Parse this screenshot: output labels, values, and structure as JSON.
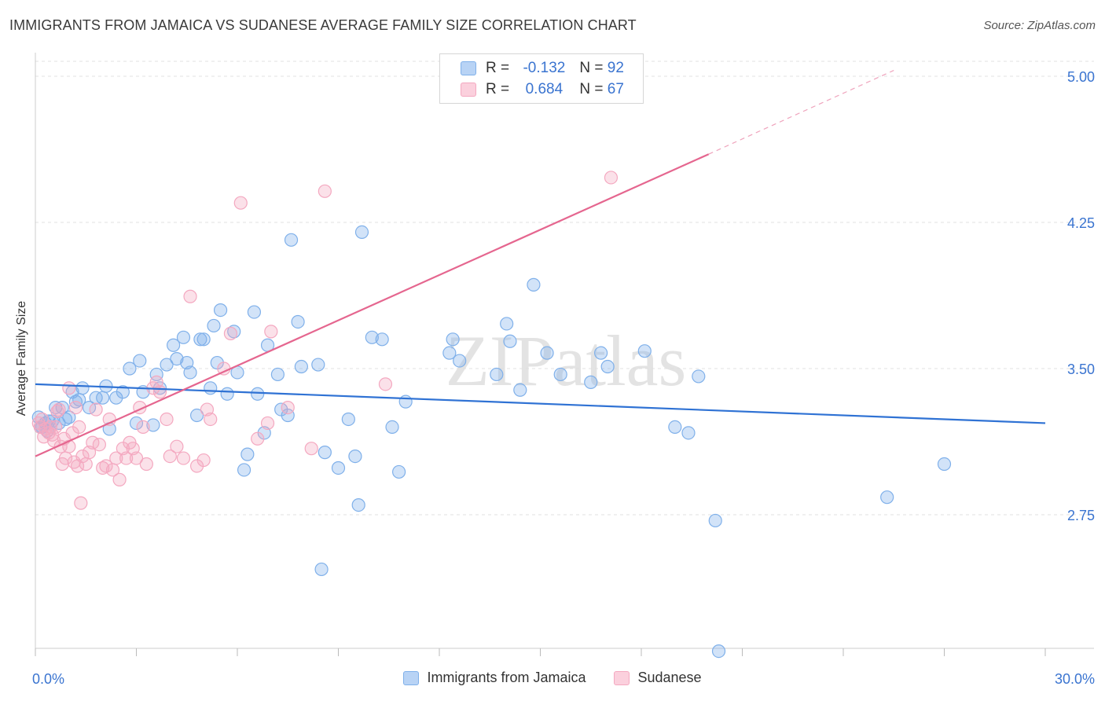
{
  "title": "IMMIGRANTS FROM JAMAICA VS SUDANESE AVERAGE FAMILY SIZE CORRELATION CHART",
  "source": "Source: ZipAtlas.com",
  "watermark": "ZIPatlas",
  "legend": {
    "rows": [
      {
        "r_label": "R =",
        "r_value": "-0.132",
        "n_label": "N =",
        "n_value": "92"
      },
      {
        "r_label": "R =",
        "r_value": "0.684",
        "n_label": "N =",
        "n_value": "67"
      }
    ]
  },
  "chart_data": {
    "type": "scatter",
    "xlabel": "",
    "ylabel": "Average Family Size",
    "xlim": [
      0,
      30
    ],
    "ylim": [
      2.0,
      5.1
    ],
    "x_tick_labels": [
      "0.0%",
      "30.0%"
    ],
    "y_ticks": [
      2.75,
      3.5,
      4.25,
      5.0
    ],
    "y_tick_labels": [
      "2.75",
      "3.50",
      "4.25",
      "5.00"
    ],
    "grid": "horizontal dashed",
    "legend_position": "top-center",
    "series": [
      {
        "name": "Immigrants from Jamaica",
        "color": "#7fb0ea",
        "line_color": "#2f72d4",
        "trend": {
          "x": [
            0,
            30
          ],
          "y": [
            3.42,
            3.22
          ]
        },
        "points": [
          [
            0.1,
            3.25
          ],
          [
            0.2,
            3.2
          ],
          [
            0.3,
            3.22
          ],
          [
            0.4,
            3.23
          ],
          [
            0.6,
            3.3
          ],
          [
            0.7,
            3.22
          ],
          [
            0.8,
            3.3
          ],
          [
            1.0,
            3.25
          ],
          [
            1.2,
            3.33
          ],
          [
            1.4,
            3.4
          ],
          [
            1.6,
            3.3
          ],
          [
            1.8,
            3.35
          ],
          [
            2.0,
            3.35
          ],
          [
            2.1,
            3.41
          ],
          [
            2.2,
            3.19
          ],
          [
            2.4,
            3.35
          ],
          [
            2.6,
            3.38
          ],
          [
            2.8,
            3.5
          ],
          [
            3.0,
            3.22
          ],
          [
            3.1,
            3.54
          ],
          [
            3.2,
            3.38
          ],
          [
            3.5,
            3.21
          ],
          [
            3.6,
            3.47
          ],
          [
            3.7,
            3.4
          ],
          [
            3.9,
            3.52
          ],
          [
            4.1,
            3.62
          ],
          [
            4.2,
            3.55
          ],
          [
            4.4,
            3.66
          ],
          [
            4.5,
            3.53
          ],
          [
            4.6,
            3.48
          ],
          [
            4.8,
            3.26
          ],
          [
            4.9,
            3.65
          ],
          [
            5.0,
            3.65
          ],
          [
            5.2,
            3.4
          ],
          [
            5.3,
            3.72
          ],
          [
            5.4,
            3.53
          ],
          [
            5.5,
            3.8
          ],
          [
            5.7,
            3.37
          ],
          [
            5.9,
            3.69
          ],
          [
            6.0,
            3.48
          ],
          [
            6.2,
            2.98
          ],
          [
            6.3,
            3.06
          ],
          [
            6.5,
            3.79
          ],
          [
            6.6,
            3.37
          ],
          [
            6.8,
            3.17
          ],
          [
            6.9,
            3.62
          ],
          [
            7.2,
            3.47
          ],
          [
            7.3,
            3.29
          ],
          [
            7.5,
            3.26
          ],
          [
            7.6,
            4.16
          ],
          [
            7.8,
            3.74
          ],
          [
            7.9,
            3.51
          ],
          [
            8.4,
            3.52
          ],
          [
            8.5,
            2.47
          ],
          [
            8.6,
            3.07
          ],
          [
            9.0,
            2.99
          ],
          [
            9.3,
            3.24
          ],
          [
            9.5,
            3.05
          ],
          [
            9.6,
            2.8
          ],
          [
            9.7,
            4.2
          ],
          [
            10.0,
            3.66
          ],
          [
            10.3,
            3.65
          ],
          [
            10.6,
            3.2
          ],
          [
            10.8,
            2.97
          ],
          [
            11.0,
            3.33
          ],
          [
            12.3,
            3.58
          ],
          [
            12.6,
            3.54
          ],
          [
            12.4,
            3.65
          ],
          [
            13.7,
            3.47
          ],
          [
            14.0,
            3.73
          ],
          [
            14.1,
            3.64
          ],
          [
            14.4,
            3.39
          ],
          [
            14.8,
            3.93
          ],
          [
            15.2,
            3.58
          ],
          [
            15.6,
            3.47
          ],
          [
            16.5,
            3.43
          ],
          [
            16.8,
            3.58
          ],
          [
            17.0,
            3.51
          ],
          [
            18.1,
            3.59
          ],
          [
            19.0,
            3.2
          ],
          [
            19.4,
            3.17
          ],
          [
            19.7,
            3.46
          ],
          [
            20.2,
            2.72
          ],
          [
            20.3,
            2.05
          ],
          [
            25.3,
            2.84
          ],
          [
            27.0,
            3.01
          ],
          [
            0.15,
            3.2
          ],
          [
            0.35,
            3.18
          ],
          [
            0.5,
            3.23
          ],
          [
            0.9,
            3.24
          ],
          [
            1.1,
            3.38
          ],
          [
            1.3,
            3.34
          ]
        ]
      },
      {
        "name": "Sudanese",
        "color": "#f4a8c0",
        "line_color": "#e5668f",
        "trend": {
          "x": [
            0,
            20
          ],
          "y": [
            3.05,
            4.6
          ]
        },
        "trend_extension": {
          "x": [
            20,
            25.5
          ],
          "y": [
            4.6,
            5.03
          ]
        },
        "points": [
          [
            0.1,
            3.22
          ],
          [
            0.2,
            3.24
          ],
          [
            0.3,
            3.19
          ],
          [
            0.4,
            3.17
          ],
          [
            0.5,
            3.16
          ],
          [
            0.6,
            3.2
          ],
          [
            0.7,
            3.29
          ],
          [
            0.8,
            3.01
          ],
          [
            0.9,
            3.04
          ],
          [
            1.0,
            3.1
          ],
          [
            1.0,
            3.4
          ],
          [
            1.1,
            3.17
          ],
          [
            1.2,
            3.3
          ],
          [
            1.3,
            3.2
          ],
          [
            1.4,
            3.05
          ],
          [
            1.5,
            3.01
          ],
          [
            1.6,
            3.07
          ],
          [
            1.7,
            3.12
          ],
          [
            1.8,
            3.29
          ],
          [
            1.9,
            3.11
          ],
          [
            2.0,
            2.99
          ],
          [
            2.1,
            3.0
          ],
          [
            2.2,
            3.24
          ],
          [
            2.3,
            2.98
          ],
          [
            2.4,
            3.04
          ],
          [
            2.5,
            2.93
          ],
          [
            2.6,
            3.09
          ],
          [
            2.7,
            3.04
          ],
          [
            2.8,
            3.12
          ],
          [
            2.9,
            3.09
          ],
          [
            3.0,
            3.04
          ],
          [
            3.1,
            3.3
          ],
          [
            3.2,
            3.2
          ],
          [
            3.3,
            3.01
          ],
          [
            3.5,
            3.4
          ],
          [
            3.6,
            3.43
          ],
          [
            3.7,
            3.38
          ],
          [
            3.9,
            3.24
          ],
          [
            4.0,
            3.05
          ],
          [
            4.2,
            3.1
          ],
          [
            4.4,
            3.04
          ],
          [
            4.6,
            3.87
          ],
          [
            4.8,
            3.0
          ],
          [
            5.0,
            3.03
          ],
          [
            5.1,
            3.29
          ],
          [
            5.2,
            3.24
          ],
          [
            5.6,
            3.5
          ],
          [
            5.8,
            3.68
          ],
          [
            6.1,
            4.35
          ],
          [
            6.6,
            3.14
          ],
          [
            6.9,
            3.22
          ],
          [
            7.0,
            3.69
          ],
          [
            7.5,
            3.3
          ],
          [
            8.2,
            3.09
          ],
          [
            8.6,
            4.41
          ],
          [
            10.4,
            3.42
          ],
          [
            17.1,
            4.48
          ],
          [
            0.15,
            3.2
          ],
          [
            0.25,
            3.15
          ],
          [
            0.45,
            3.2
          ],
          [
            0.55,
            3.13
          ],
          [
            0.65,
            3.28
          ],
          [
            0.75,
            3.1
          ],
          [
            0.85,
            3.14
          ],
          [
            1.15,
            3.02
          ],
          [
            1.25,
            3.0
          ],
          [
            1.35,
            2.81
          ]
        ]
      }
    ]
  },
  "bottom_legend": [
    "Immigrants from Jamaica",
    "Sudanese"
  ]
}
